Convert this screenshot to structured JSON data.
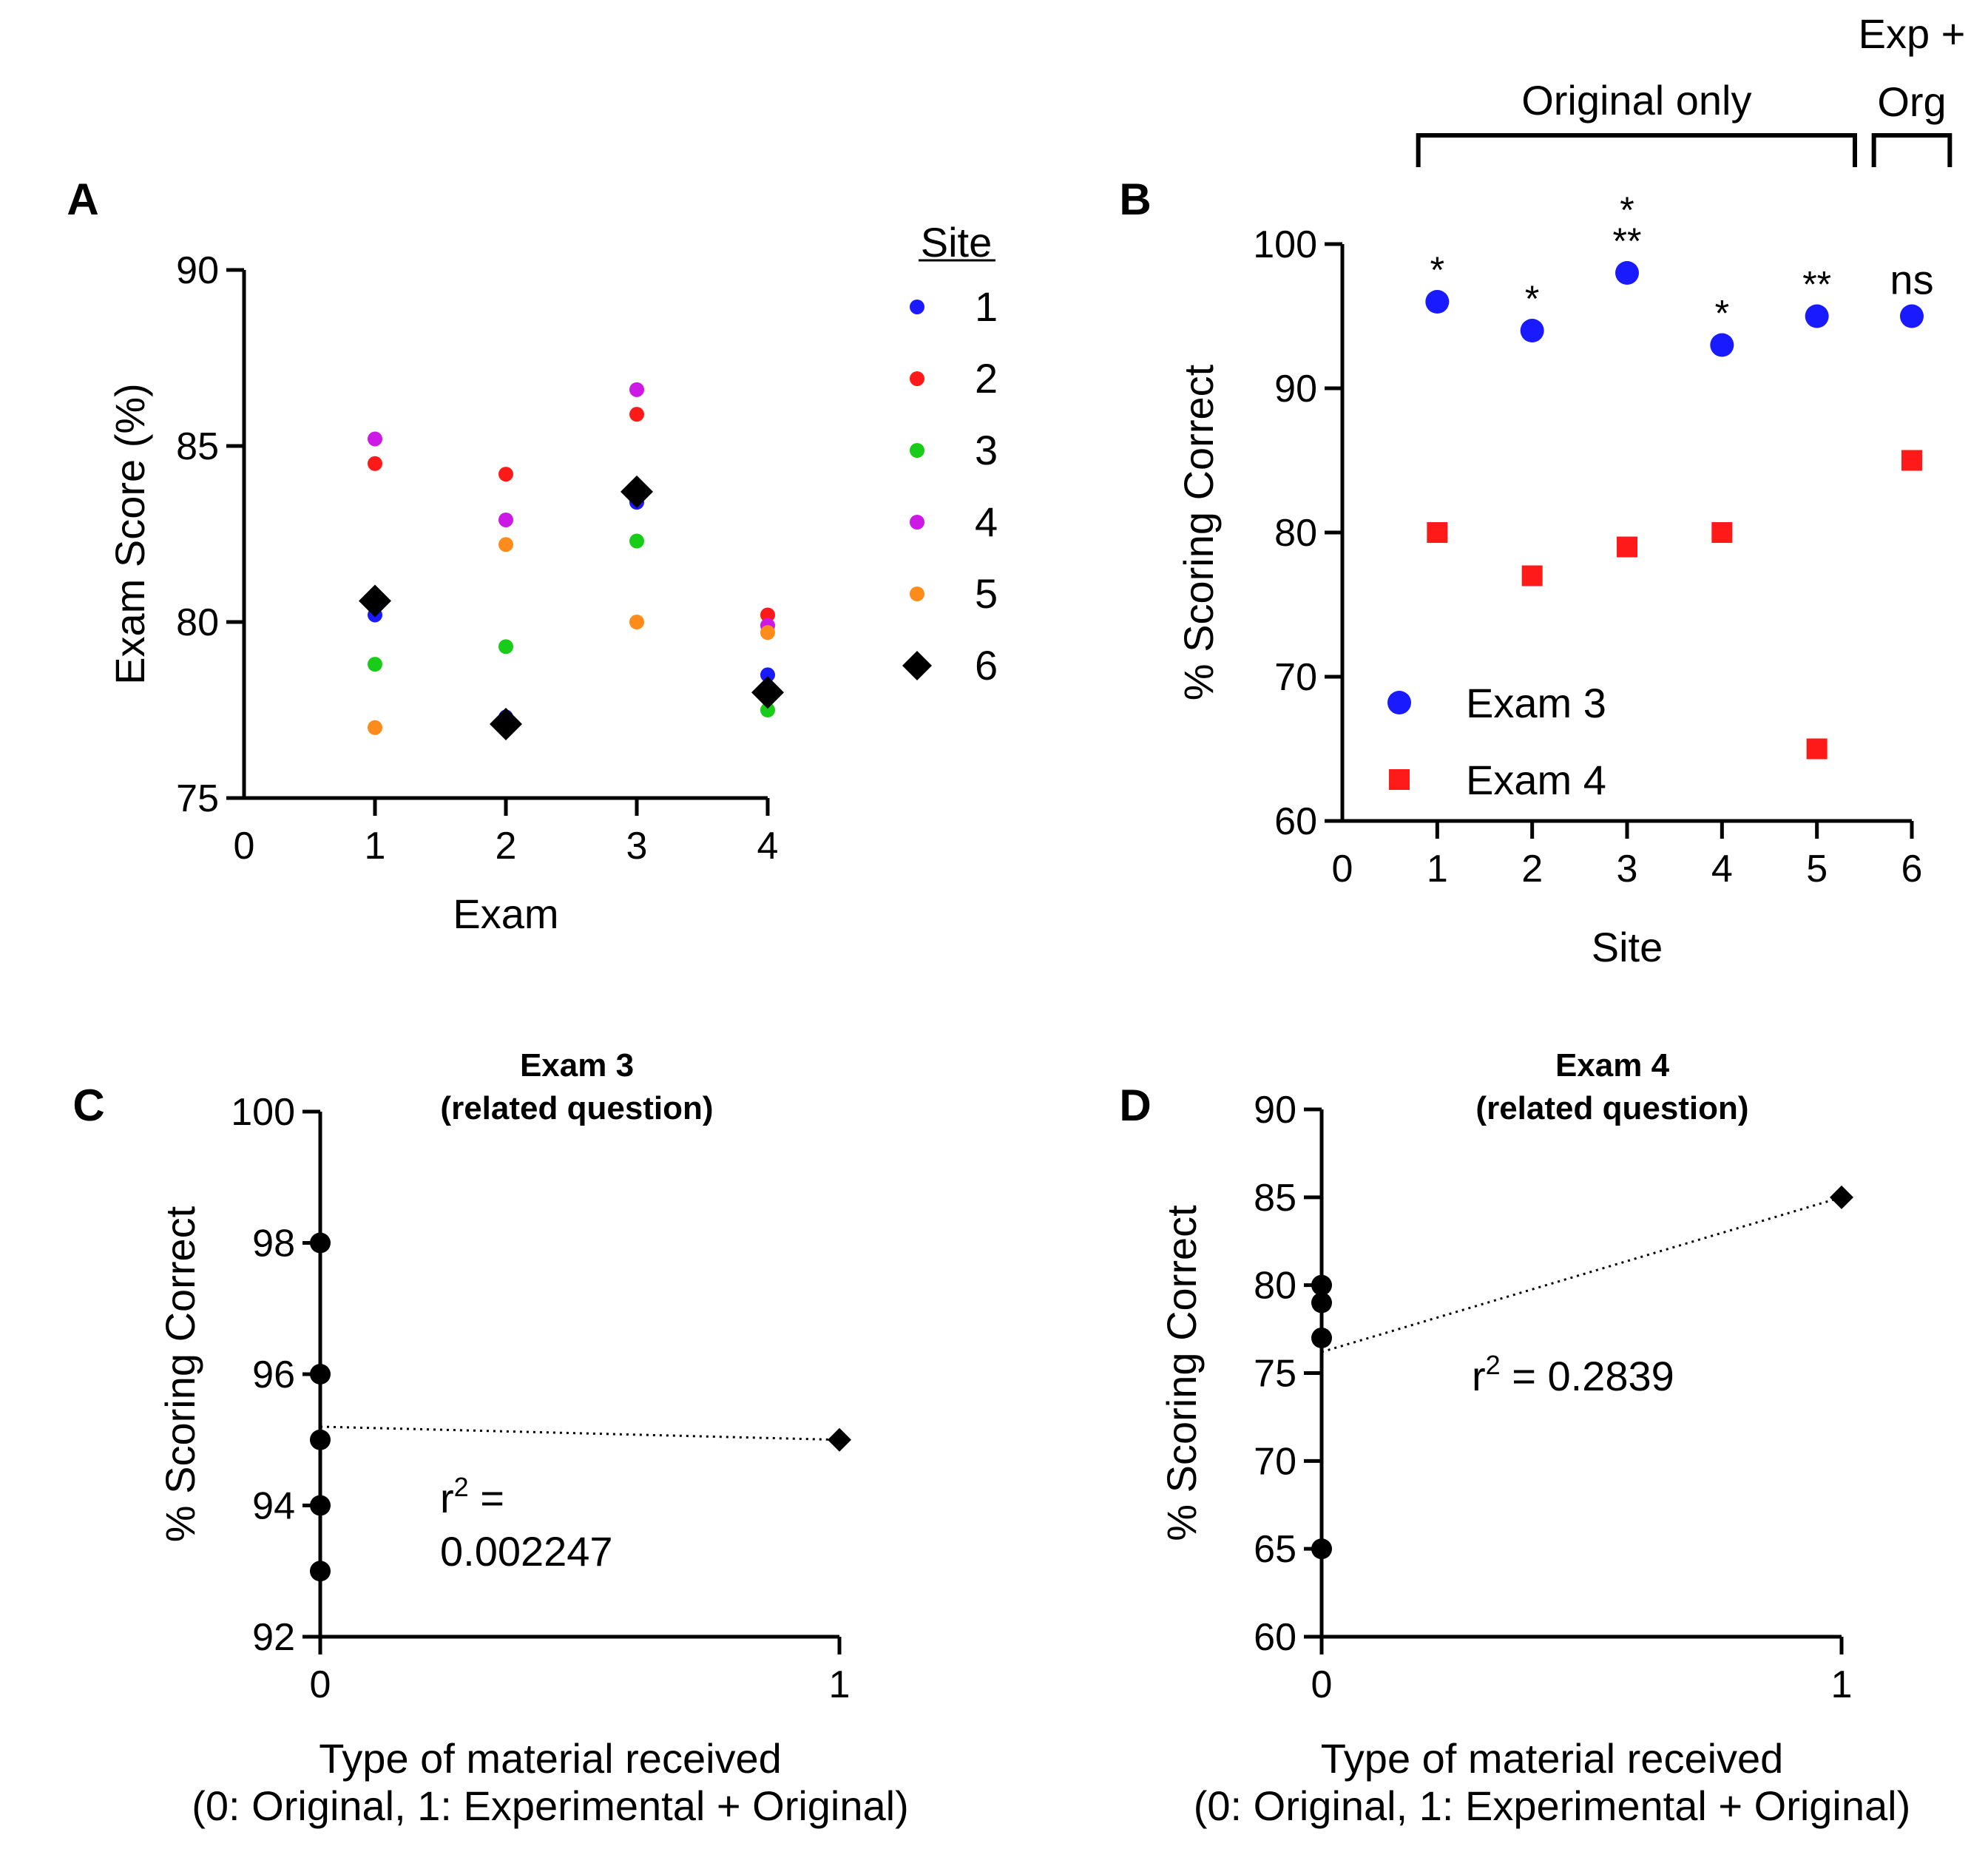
{
  "chart_data": [
    {
      "panel": "A",
      "type": "scatter",
      "xlabel": "Exam",
      "ylabel": "Exam Score (%)",
      "xlim": [
        0,
        4
      ],
      "ylim": [
        75,
        90
      ],
      "xticks": [
        0,
        1,
        2,
        3,
        4
      ],
      "yticks": [
        75,
        80,
        85,
        90
      ],
      "legend_title": "Site",
      "legend_position": "right",
      "series": [
        {
          "name": "1",
          "color": "#1a1aff",
          "marker": "circle",
          "x": [
            1,
            2,
            3,
            4
          ],
          "y": [
            80.2,
            77.3,
            83.4,
            78.5
          ]
        },
        {
          "name": "2",
          "color": "#ff1a1a",
          "marker": "circle",
          "x": [
            1,
            2,
            3,
            4
          ],
          "y": [
            84.5,
            84.2,
            85.9,
            80.2
          ]
        },
        {
          "name": "3",
          "color": "#19cc19",
          "marker": "circle",
          "x": [
            1,
            2,
            3,
            4
          ],
          "y": [
            78.8,
            79.3,
            82.3,
            77.5
          ]
        },
        {
          "name": "4",
          "color": "#cc19e6",
          "marker": "circle",
          "x": [
            1,
            2,
            3,
            4
          ],
          "y": [
            85.2,
            82.9,
            86.6,
            79.9
          ]
        },
        {
          "name": "5",
          "color": "#ff8c1a",
          "marker": "circle",
          "x": [
            1,
            2,
            3,
            4
          ],
          "y": [
            77.0,
            82.2,
            80.0,
            79.7
          ]
        },
        {
          "name": "6",
          "color": "#000000",
          "marker": "diamond",
          "x": [
            1,
            2,
            3,
            4
          ],
          "y": [
            80.6,
            77.1,
            83.7,
            78.0
          ]
        }
      ]
    },
    {
      "panel": "B",
      "type": "scatter",
      "xlabel": "Site",
      "ylabel": "% Scoring Correct",
      "xlim": [
        0,
        6
      ],
      "ylim": [
        60,
        100
      ],
      "xticks": [
        0,
        1,
        2,
        3,
        4,
        5,
        6
      ],
      "yticks": [
        60,
        70,
        80,
        90,
        100
      ],
      "legend_position": "bottom-left",
      "series": [
        {
          "name": "Exam 3",
          "color": "#1a1aff",
          "marker": "circle",
          "x": [
            1,
            2,
            3,
            4,
            5,
            6
          ],
          "y": [
            96,
            94,
            98,
            93,
            95,
            95
          ]
        },
        {
          "name": "Exam 4",
          "color": "#ff1a1a",
          "marker": "square",
          "x": [
            1,
            2,
            3,
            4,
            5,
            6
          ],
          "y": [
            80,
            77,
            79,
            80,
            65,
            85
          ]
        }
      ],
      "significance": [
        {
          "x": 1,
          "lines": [
            "*"
          ]
        },
        {
          "x": 2,
          "lines": [
            "*"
          ]
        },
        {
          "x": 3,
          "lines": [
            "*",
            "**"
          ]
        },
        {
          "x": 4,
          "lines": [
            "*"
          ]
        },
        {
          "x": 5,
          "lines": [
            "**"
          ]
        },
        {
          "x": 6,
          "lines": [
            "ns"
          ]
        }
      ],
      "brackets": [
        {
          "label": "Original only",
          "from": 0.8,
          "to": 5.4
        },
        {
          "label_lines": [
            "Exp +",
            "Org"
          ],
          "from": 5.6,
          "to": 6.4
        }
      ]
    },
    {
      "panel": "C",
      "type": "scatter",
      "title_lines": [
        "Exam 3",
        "(related question)"
      ],
      "xlabel_lines": [
        "Type of material received",
        "(0: Original, 1: Experimental + Original)"
      ],
      "ylabel": "% Scoring Correct",
      "xlim": [
        0,
        1
      ],
      "ylim": [
        92,
        100
      ],
      "xticks": [
        0,
        1
      ],
      "yticks": [
        92,
        94,
        96,
        98,
        100
      ],
      "points": [
        {
          "x": 0,
          "y": 98,
          "marker": "circle"
        },
        {
          "x": 0,
          "y": 96,
          "marker": "circle"
        },
        {
          "x": 0,
          "y": 95,
          "marker": "circle"
        },
        {
          "x": 0,
          "y": 94,
          "marker": "circle"
        },
        {
          "x": 0,
          "y": 93,
          "marker": "circle"
        },
        {
          "x": 1,
          "y": 95,
          "marker": "diamond"
        }
      ],
      "fit_line": {
        "x": [
          0,
          1
        ],
        "y": [
          95.2,
          95.0
        ]
      },
      "annotation_lines": [
        "r",
        "2",
        " =",
        "0.002247"
      ]
    },
    {
      "panel": "D",
      "type": "scatter",
      "title_lines": [
        "Exam 4",
        "(related question)"
      ],
      "xlabel_lines": [
        "Type of material received",
        "(0: Original, 1: Experimental + Original)"
      ],
      "ylabel": "% Scoring Correct",
      "xlim": [
        0,
        1
      ],
      "ylim": [
        60,
        90
      ],
      "xticks": [
        0,
        1
      ],
      "yticks": [
        60,
        65,
        70,
        75,
        80,
        85,
        90
      ],
      "points": [
        {
          "x": 0,
          "y": 80,
          "marker": "circle"
        },
        {
          "x": 0,
          "y": 79,
          "marker": "circle"
        },
        {
          "x": 0,
          "y": 77,
          "marker": "circle"
        },
        {
          "x": 0,
          "y": 65,
          "marker": "circle"
        },
        {
          "x": 1,
          "y": 85,
          "marker": "diamond"
        }
      ],
      "fit_line": {
        "x": [
          0,
          1
        ],
        "y": [
          76.2,
          85.0
        ]
      },
      "annotation_lines": [
        "r",
        "2",
        " = 0.2839"
      ]
    }
  ]
}
